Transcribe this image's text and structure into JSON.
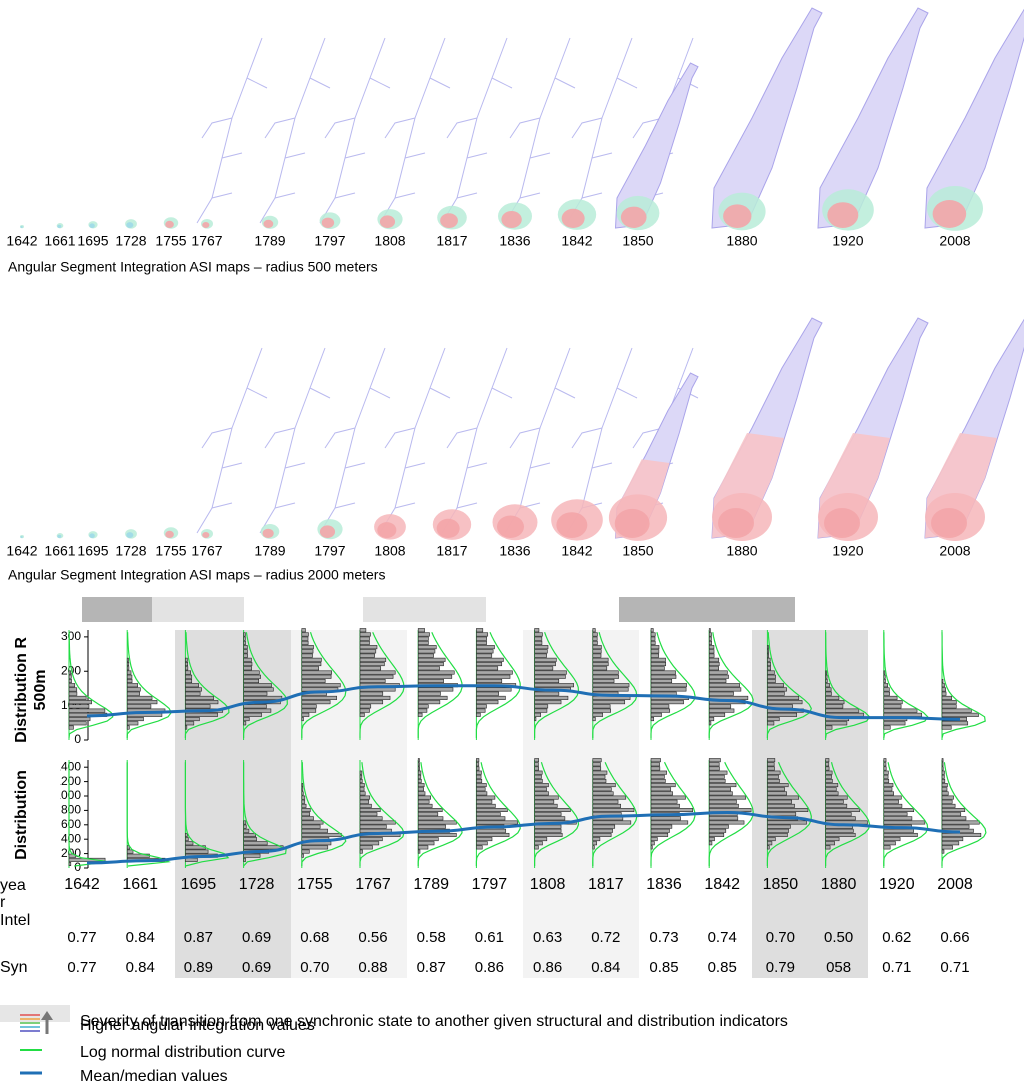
{
  "maps_500": {
    "years": [
      "1642",
      "1661",
      "1695",
      "1728",
      "1755",
      "1767",
      "1789",
      "1797",
      "1808",
      "1817",
      "1836",
      "1842",
      "1850",
      "1880",
      "1920",
      "2008"
    ],
    "caption": "Angular Segment Integration ASI maps – radius 500 meters"
  },
  "maps_2000": {
    "years": [
      "1642",
      "1661",
      "1695",
      "1728",
      "1755",
      "1767",
      "1789",
      "1797",
      "1808",
      "1817",
      "1836",
      "1842",
      "1850",
      "1880",
      "1920",
      "2008"
    ],
    "caption": "Angular Segment Integration ASI maps – radius 2000 meters"
  },
  "chart_data": [
    {
      "type": "histogram-row",
      "ylabel": "Distribution R500m",
      "ylim": [
        0,
        320
      ],
      "yticks": [
        0,
        100,
        200,
        300
      ],
      "series": [
        {
          "name": "Mean/median values",
          "color": "#1f6fb5",
          "values": [
            70,
            80,
            85,
            110,
            140,
            155,
            158,
            158,
            145,
            130,
            128,
            115,
            90,
            65,
            65,
            60
          ]
        }
      ]
    },
    {
      "type": "histogram-row",
      "ylabel": "Distribution",
      "ylim": [
        0,
        1500
      ],
      "yticks": [
        0,
        200,
        400,
        600,
        800,
        1000,
        1200,
        1400
      ],
      "series": [
        {
          "name": "Mean/median values",
          "color": "#1f6fb5",
          "values": [
            70,
            100,
            160,
            230,
            380,
            480,
            510,
            570,
            620,
            720,
            740,
            770,
            700,
            600,
            560,
            500
          ]
        }
      ]
    }
  ],
  "table": {
    "rows": [
      {
        "label": "year",
        "cells": [
          "1642",
          "1661",
          "1695",
          "1728",
          "1755",
          "1767",
          "1789",
          "1797",
          "1808",
          "1817",
          "1836",
          "1842",
          "1850",
          "1880",
          "1920",
          "2008"
        ]
      },
      {
        "label": "Intel",
        "cells": [
          "0.77",
          "0.84",
          "0.87",
          "0.69",
          "0.68",
          "0.56",
          "0.58",
          "0.61",
          "0.63",
          "0.72",
          "0.73",
          "0.74",
          "0.70",
          "0.50",
          "0.62",
          "0.66"
        ]
      },
      {
        "label": "Syn",
        "cells": [
          "0.77",
          "0.84",
          "0.89",
          "0.69",
          "0.70",
          "0.88",
          "0.87",
          "0.86",
          "0.86",
          "0.84",
          "0.85",
          "0.85",
          "0.79",
          "058",
          "0.71",
          "0.71"
        ]
      }
    ]
  },
  "legend": {
    "severity": "Severity of transition from one synchronic state to another given structural and distribution indicators",
    "integration": "Higher angular integration values",
    "lognormal": "Log normal distribution curve",
    "mean": "Mean/median values"
  }
}
